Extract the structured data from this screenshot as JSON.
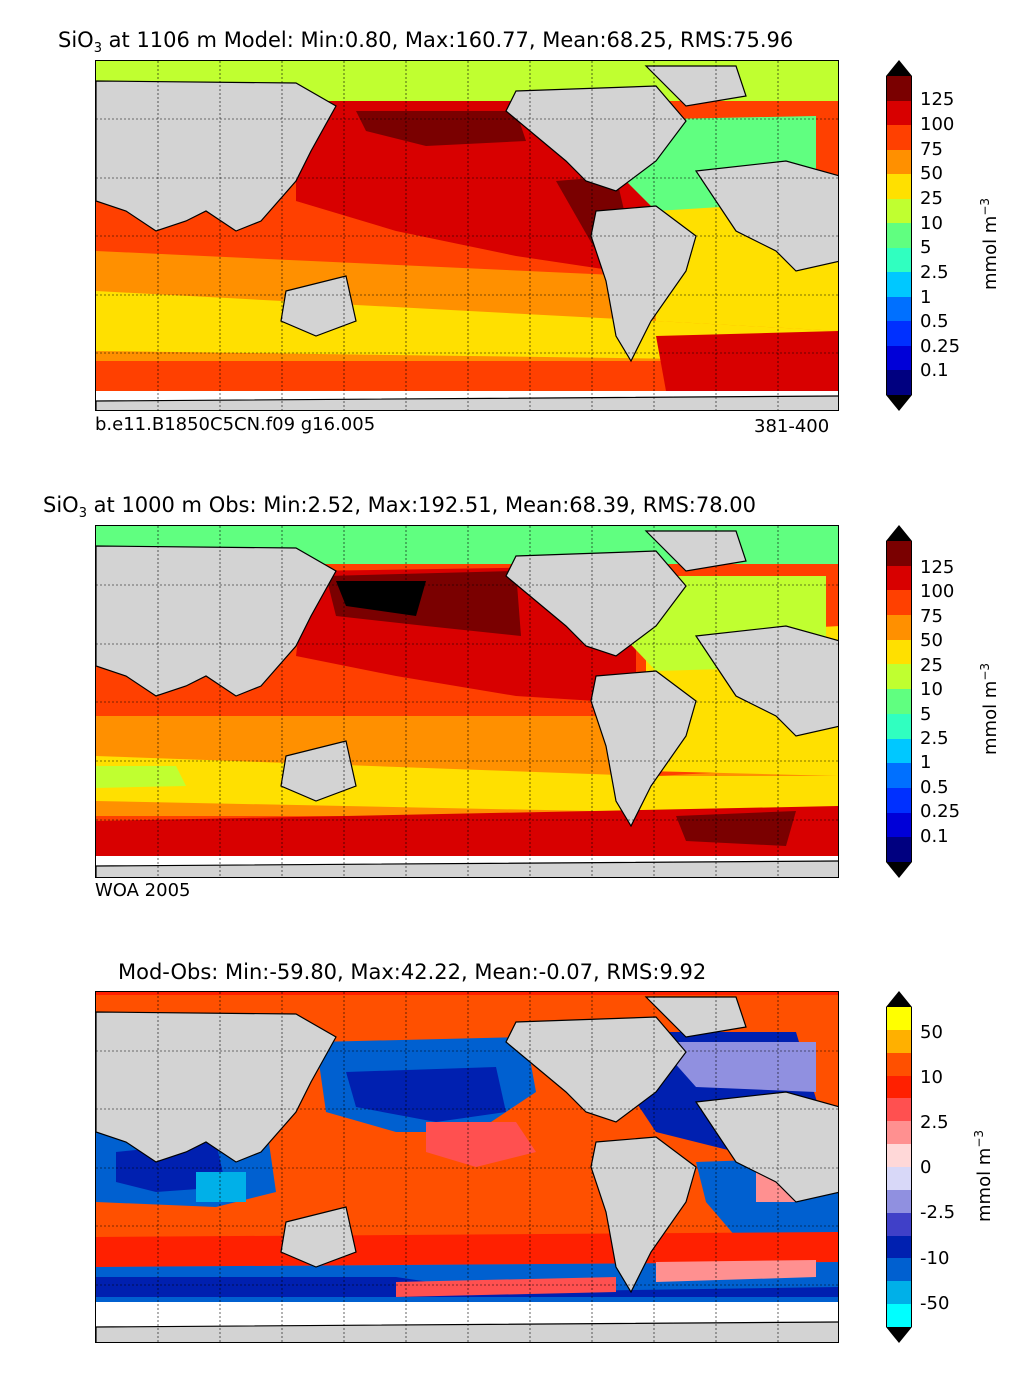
{
  "panels": [
    {
      "title_prefix": "SiO",
      "title_sub": "3",
      "title_rest": " at 1106 m Model: Min:0.80, Max:160.77, Mean:68.25, RMS:75.96",
      "case_label": "b.e11.B1850C5CN.f09 g16.005",
      "years_label": "381-400",
      "colorbar": {
        "ticks": [
          "125",
          "100",
          "75",
          "50",
          "25",
          "10",
          "5",
          "2.5",
          "1",
          "0.5",
          "0.25",
          "0.1"
        ],
        "colors": [
          "#7a0000",
          "#d80000",
          "#ff4000",
          "#ff9000",
          "#ffe000",
          "#c0ff30",
          "#60ff80",
          "#30ffc0",
          "#00c8ff",
          "#0070ff",
          "#0030ff",
          "#0000d8",
          "#000080"
        ],
        "unit": "mmol m",
        "unit_exp": "−3"
      }
    },
    {
      "title_prefix": "SiO",
      "title_sub": "3",
      "title_rest": " at 1000 m Obs: Min:2.52, Max:192.51, Mean:68.39, RMS:78.00",
      "case_label": "WOA 2005",
      "years_label": "",
      "colorbar": {
        "ticks": [
          "125",
          "100",
          "75",
          "50",
          "25",
          "10",
          "5",
          "2.5",
          "1",
          "0.5",
          "0.25",
          "0.1"
        ],
        "colors": [
          "#7a0000",
          "#d80000",
          "#ff4000",
          "#ff9000",
          "#ffe000",
          "#c0ff30",
          "#60ff80",
          "#30ffc0",
          "#00c8ff",
          "#0070ff",
          "#0030ff",
          "#0000d8",
          "#000080"
        ],
        "unit": "mmol m",
        "unit_exp": "−3"
      }
    },
    {
      "title_prefix": "",
      "title_sub": "",
      "title_rest": "Mod-Obs: Min:-59.80, Max:42.22, Mean:-0.07, RMS:9.92",
      "case_label": "",
      "years_label": "",
      "colorbar": {
        "ticks": [
          "50",
          "10",
          "2.5",
          "0",
          "-2.5",
          "-10",
          "-50"
        ],
        "colors": [
          "#ffff00",
          "#ffb000",
          "#ff5000",
          "#ff2000",
          "#ff5050",
          "#ff9090",
          "#ffd8d8",
          "#d8d8f8",
          "#9090e0",
          "#4040c8",
          "#0020b0",
          "#0060d0",
          "#00b0e8",
          "#00ffff"
        ],
        "unit": "mmol m",
        "unit_exp": "−3"
      }
    }
  ]
}
